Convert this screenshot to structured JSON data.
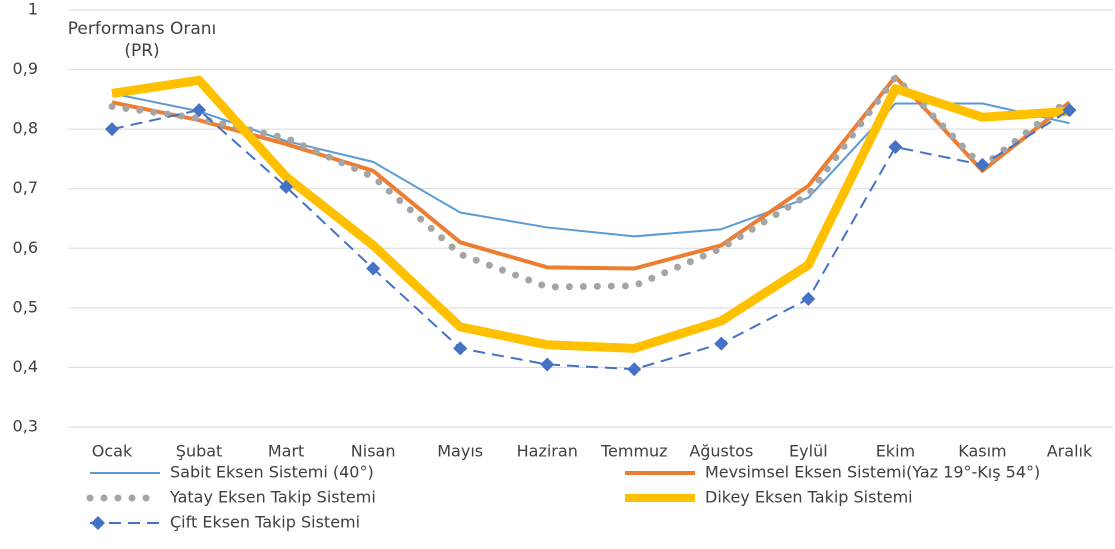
{
  "chart_data": {
    "type": "line",
    "title": "Performans Oranı (PR)",
    "categories": [
      "Ocak",
      "Şubat",
      "Mart",
      "Nisan",
      "Mayıs",
      "Haziran",
      "Temmuz",
      "Ağustos",
      "Eylül",
      "Ekim",
      "Kasım",
      "Aralık"
    ],
    "series": [
      {
        "name": "Sabit Eksen Sistemi (40°)",
        "color": "#5b9bd5",
        "linestyle": "solid",
        "values": [
          0.86,
          0.83,
          0.78,
          0.745,
          0.66,
          0.635,
          0.62,
          0.632,
          0.685,
          0.843,
          0.843,
          0.81
        ]
      },
      {
        "name": "Mevsimsel Eksen Sistemi(Yaz 19°-Kış 54°)",
        "color": "#ed7d31",
        "linestyle": "solid",
        "values": [
          0.845,
          0.815,
          0.775,
          0.73,
          0.61,
          0.568,
          0.566,
          0.605,
          0.705,
          0.888,
          0.73,
          0.845
        ]
      },
      {
        "name": "Yatay Eksen Takip Sistemi",
        "color": "#a5a5a5",
        "linestyle": "dotted",
        "values": [
          0.838,
          0.818,
          0.785,
          0.72,
          0.59,
          0.535,
          0.537,
          0.6,
          0.69,
          0.887,
          0.737,
          0.85
        ]
      },
      {
        "name": "Dikey Eksen Takip Sistemi",
        "color": "#ffc000",
        "linestyle": "solid",
        "values": [
          0.86,
          0.882,
          0.72,
          0.605,
          0.468,
          0.438,
          0.432,
          0.478,
          0.572,
          0.868,
          0.82,
          0.83
        ]
      },
      {
        "name": "Çift Eksen Takip Sistemi",
        "color": "#4472c4",
        "linestyle": "dashed",
        "marker": "diamond",
        "values": [
          0.8,
          0.832,
          0.703,
          0.566,
          0.432,
          0.405,
          0.397,
          0.44,
          0.515,
          0.77,
          0.74,
          0.832
        ]
      }
    ],
    "ylim": [
      0.3,
      1
    ],
    "yticks": [
      {
        "value": 0.3,
        "label": "0,3"
      },
      {
        "value": 0.4,
        "label": "0,4"
      },
      {
        "value": 0.5,
        "label": "0,5"
      },
      {
        "value": 0.6,
        "label": "0,6"
      },
      {
        "value": 0.7,
        "label": "0,7"
      },
      {
        "value": 0.8,
        "label": "0,8"
      },
      {
        "value": 0.9,
        "label": "0,9"
      },
      1
    ],
    "grid": true,
    "legend": "bottom"
  }
}
